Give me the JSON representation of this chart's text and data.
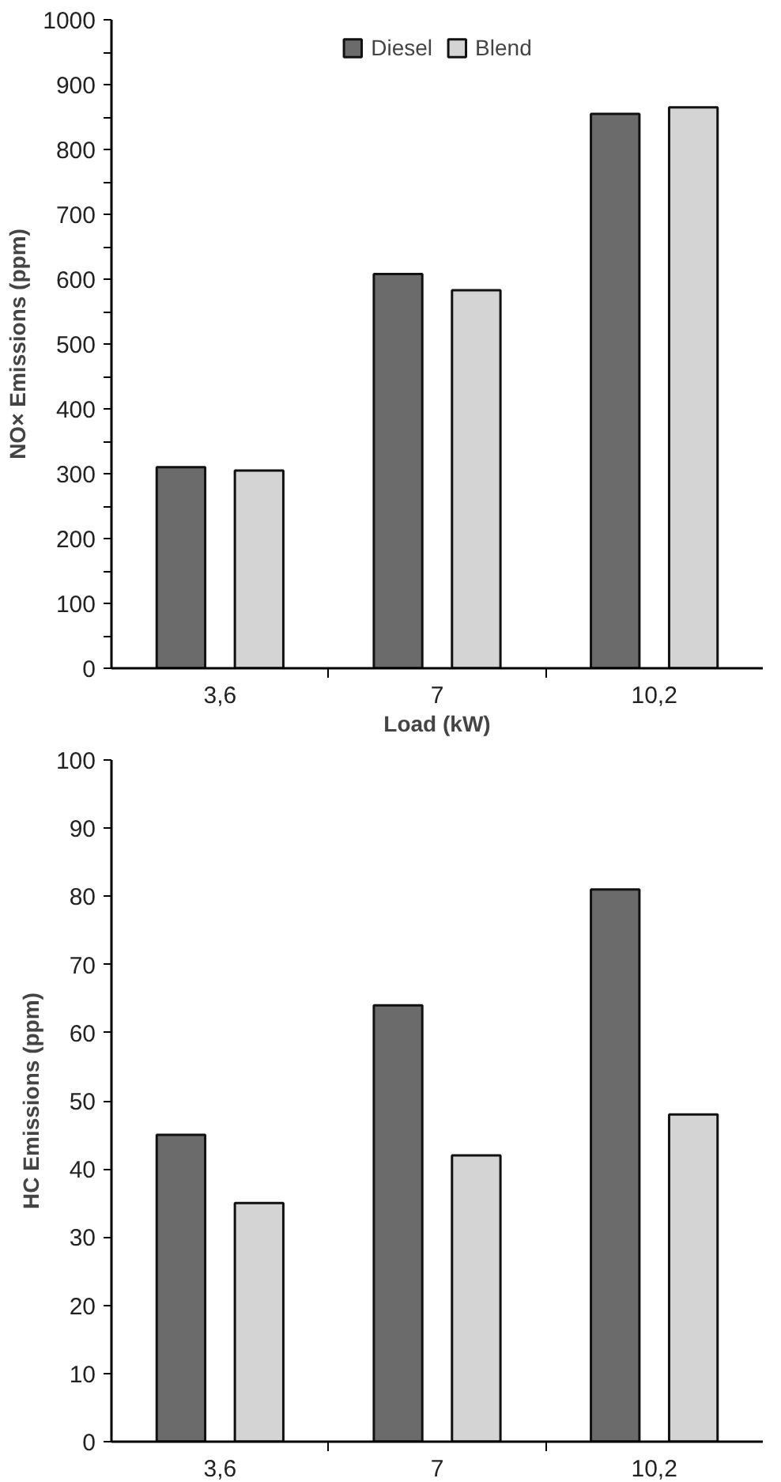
{
  "chart_data": [
    {
      "type": "bar",
      "ylabel": "NO× Emissions (ppm)",
      "xlabel": "Load (kW)",
      "categories": [
        "3,6",
        "7",
        "10,2"
      ],
      "series": [
        {
          "name": "Diesel",
          "color": "#6b6b6b",
          "values": [
            310,
            608,
            855
          ]
        },
        {
          "name": "Blend",
          "color": "#d4d4d4",
          "values": [
            305,
            583,
            865
          ]
        }
      ],
      "ylim": [
        0,
        1000
      ],
      "yticks": [
        0,
        {
          "value": 50,
          "label": null
        },
        100,
        {
          "value": 150,
          "label": null
        },
        200,
        {
          "value": 250,
          "label": null
        },
        300,
        {
          "value": 350,
          "label": null
        },
        400,
        {
          "value": 450,
          "label": null
        },
        500,
        {
          "value": 550,
          "label": null
        },
        600,
        {
          "value": 650,
          "label": null
        },
        700,
        {
          "value": 750,
          "label": null
        },
        800,
        {
          "value": 850,
          "label": null
        },
        900,
        {
          "value": 950,
          "label": null
        },
        1000
      ],
      "grid": false,
      "legend": "top"
    },
    {
      "type": "bar",
      "ylabel": "HC Emissions (ppm)",
      "categories": [
        "3,6",
        "7",
        "10,2"
      ],
      "series": [
        {
          "color": "#6b6b6b",
          "values": [
            45,
            64,
            81
          ]
        },
        {
          "color": "#d4d4d4",
          "values": [
            35,
            42,
            48
          ]
        }
      ],
      "ylim": [
        0,
        100
      ],
      "yticks": [
        0,
        10,
        20,
        30,
        40,
        50,
        60,
        70,
        80,
        90,
        100
      ],
      "grid": false,
      "legend": false
    }
  ]
}
